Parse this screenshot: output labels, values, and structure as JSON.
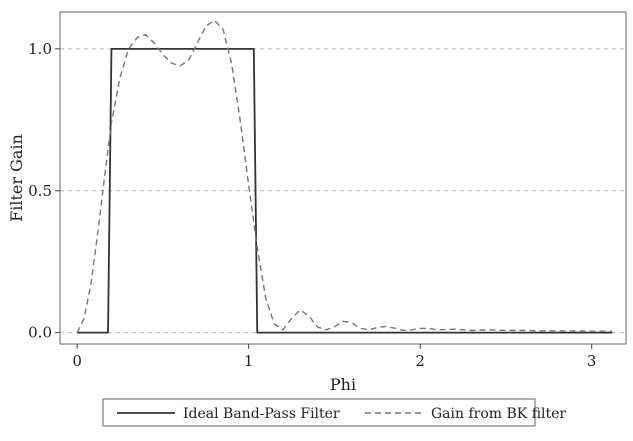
{
  "chart_data": {
    "type": "line",
    "title": "",
    "xlabel": "Phi",
    "ylabel": "Filter Gain",
    "xlim": [
      -0.1,
      3.2
    ],
    "ylim": [
      -0.04,
      1.13
    ],
    "xticks": [
      0,
      1,
      2,
      3
    ],
    "xtick_labels": [
      "0",
      "1",
      "2",
      "3"
    ],
    "yticks": [
      0.0,
      0.5,
      1.0
    ],
    "ytick_labels": [
      "0.0",
      "0.5",
      "1.0"
    ],
    "grid": "horizontal dashed",
    "legend_position": "bottom",
    "series": [
      {
        "name": "Ideal Band-Pass Filter",
        "style": "solid",
        "color": "#333333",
        "x": [
          0,
          0.18,
          0.2,
          1.03,
          1.05,
          3.12
        ],
        "y": [
          0,
          0,
          1,
          1,
          0,
          0
        ]
      },
      {
        "name": "Gain from BK filter",
        "style": "dashed",
        "color": "#777777",
        "x": [
          0,
          0.04,
          0.08,
          0.12,
          0.16,
          0.2,
          0.25,
          0.3,
          0.35,
          0.4,
          0.45,
          0.5,
          0.55,
          0.6,
          0.65,
          0.7,
          0.75,
          0.8,
          0.85,
          0.9,
          0.95,
          1.0,
          1.05,
          1.1,
          1.15,
          1.2,
          1.25,
          1.3,
          1.35,
          1.4,
          1.45,
          1.5,
          1.55,
          1.6,
          1.65,
          1.7,
          1.75,
          1.8,
          1.85,
          1.9,
          1.95,
          2.0,
          2.05,
          2.1,
          2.2,
          2.3,
          2.4,
          2.5,
          2.6,
          2.7,
          2.8,
          2.9,
          3.0,
          3.12
        ],
        "y": [
          0,
          0.05,
          0.17,
          0.35,
          0.55,
          0.74,
          0.9,
          1.0,
          1.04,
          1.05,
          1.02,
          0.98,
          0.95,
          0.94,
          0.96,
          1.02,
          1.08,
          1.1,
          1.07,
          0.95,
          0.75,
          0.52,
          0.3,
          0.12,
          0.03,
          0.01,
          0.05,
          0.08,
          0.06,
          0.02,
          0.01,
          0.02,
          0.04,
          0.035,
          0.015,
          0.01,
          0.018,
          0.022,
          0.016,
          0.008,
          0.01,
          0.015,
          0.015,
          0.01,
          0.012,
          0.008,
          0.01,
          0.008,
          0.008,
          0.006,
          0.006,
          0.006,
          0.005,
          0.005
        ]
      }
    ]
  }
}
